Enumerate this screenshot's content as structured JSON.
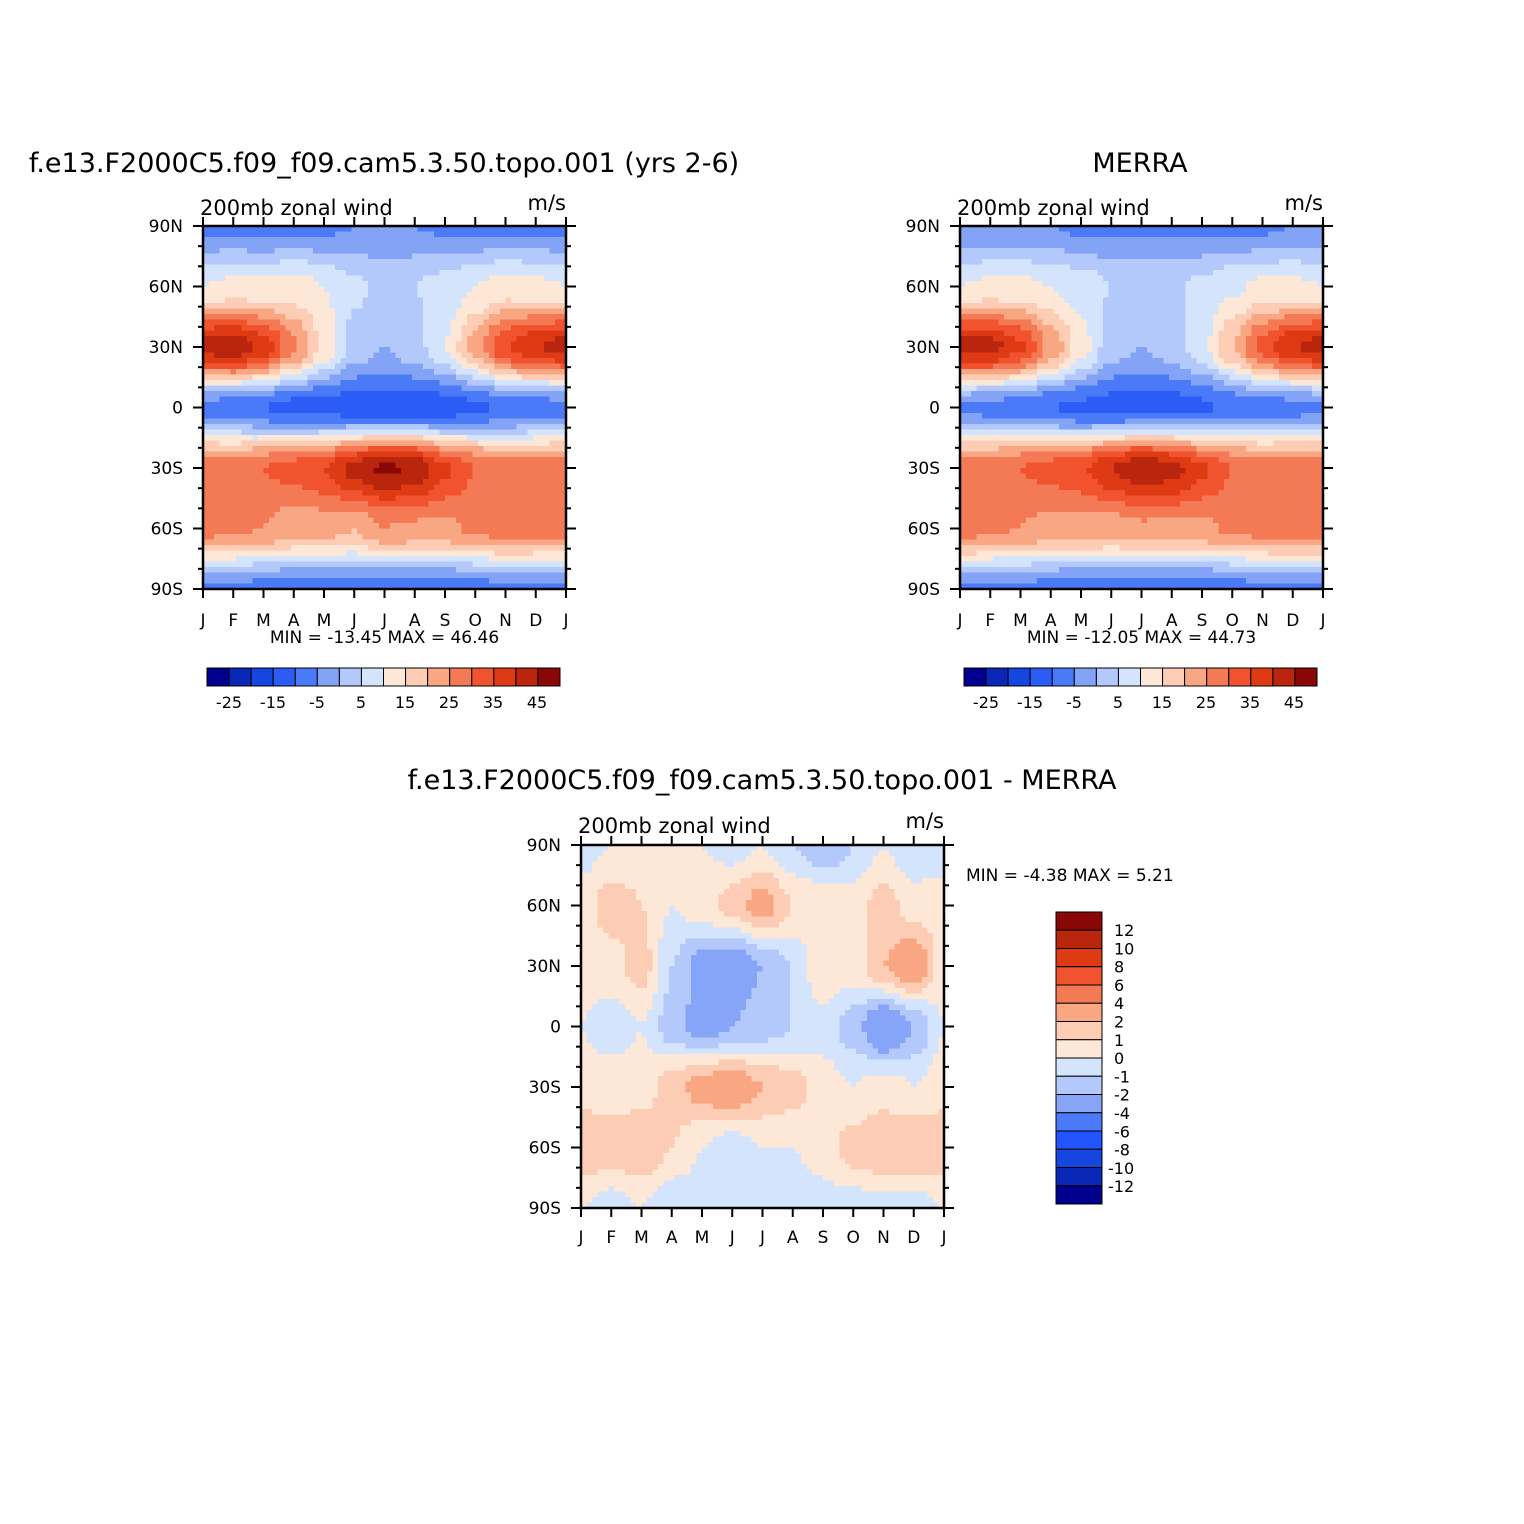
{
  "colors": {
    "full_palette": [
      "#00008f",
      "#0a27b8",
      "#1546e0",
      "#2b5cf6",
      "#4a7af8",
      "#83a3f6",
      "#b4c9fb",
      "#d4e4fc",
      "#fde7d6",
      "#fccdb4",
      "#f9a783",
      "#f47a55",
      "#f1532f",
      "#de3b14",
      "#b9250d",
      "#8a0707"
    ],
    "diff_palette": [
      "#00008f",
      "#0a27b8",
      "#1546e0",
      "#2255ff",
      "#4a7af8",
      "#87a5f8",
      "#b4c9fb",
      "#d4e4fc",
      "#fde7d6",
      "#fccdb4",
      "#f9a783",
      "#f47a55",
      "#f1532f",
      "#de3b14",
      "#b9250d",
      "#8a0707"
    ]
  },
  "ticks": {
    "months": [
      "J",
      "F",
      "M",
      "A",
      "M",
      "J",
      "J",
      "A",
      "S",
      "O",
      "N",
      "D",
      "J"
    ],
    "lats": [
      "90N",
      "60N",
      "30N",
      "0",
      "30S",
      "60S",
      "90S"
    ]
  },
  "panels": {
    "model": {
      "title": "f.e13.F2000C5.f09_f09.cam5.3.50.topo.001 (yrs 2-6)",
      "subtitle_left": "200mb zonal wind",
      "subtitle_right": "m/s",
      "stats": "MIN = -13.45 MAX = 46.46"
    },
    "obs": {
      "title": "MERRA",
      "subtitle_left": "200mb zonal wind",
      "subtitle_right": "m/s",
      "stats": "MIN = -12.05 MAX = 44.73"
    },
    "diff": {
      "title": "f.e13.F2000C5.f09_f09.cam5.3.50.topo.001 - MERRA",
      "subtitle_left": "200mb zonal wind",
      "subtitle_right": "m/s",
      "stats": "MIN = -4.38 MAX = 5.21"
    }
  },
  "colorbars": {
    "full_labels": [
      "-25",
      "-15",
      "-5",
      "5",
      "15",
      "25",
      "35",
      "45"
    ],
    "diff_labels": [
      "12",
      "10",
      "8",
      "6",
      "4",
      "2",
      "1",
      "0",
      "-1",
      "-2",
      "-4",
      "-6",
      "-8",
      "-10",
      "-12"
    ]
  },
  "chart_data": [
    {
      "type": "heatmap",
      "title": "f.e13.F2000C5.f09_f09.cam5.3.50.topo.001 (yrs 2-6)",
      "subtitle": "200mb zonal wind",
      "units": "m/s",
      "x": [
        "J",
        "F",
        "M",
        "A",
        "M",
        "J",
        "J",
        "A",
        "S",
        "O",
        "N",
        "D",
        "J"
      ],
      "y": [
        "90N",
        "60N",
        "30N",
        "0",
        "30S",
        "60S",
        "90S"
      ],
      "values": [
        [
          -6,
          -6,
          -7,
          -6,
          -6,
          -5,
          -5,
          -5,
          -6,
          -6,
          -6,
          -6,
          -6
        ],
        [
          10,
          11,
          11,
          12,
          10,
          6,
          4,
          5,
          7,
          10,
          12,
          11,
          10
        ],
        [
          42,
          44,
          38,
          26,
          14,
          3,
          0,
          3,
          10,
          22,
          35,
          40,
          42
        ],
        [
          -7,
          -8,
          -10,
          -12,
          -12,
          -13,
          -13,
          -13,
          -13,
          -11,
          -9,
          -8,
          -7
        ],
        [
          28,
          28,
          30,
          32,
          35,
          42,
          46,
          44,
          36,
          30,
          28,
          28,
          28
        ],
        [
          27,
          26,
          25,
          22,
          22,
          20,
          25,
          24,
          24,
          26,
          28,
          27,
          27
        ],
        [
          -6,
          -6,
          -7,
          -8,
          -8,
          -8,
          -8,
          -8,
          -8,
          -7,
          -6,
          -6,
          -6
        ]
      ],
      "levels": [
        -30,
        -25,
        -20,
        -15,
        -10,
        -5,
        0,
        5,
        10,
        15,
        20,
        25,
        30,
        35,
        40,
        45
      ],
      "colorbar_labels": [
        "-25",
        "-15",
        "-5",
        "5",
        "15",
        "25",
        "35",
        "45"
      ],
      "min": -13.45,
      "max": 46.46
    },
    {
      "type": "heatmap",
      "title": "MERRA",
      "subtitle": "200mb zonal wind",
      "units": "m/s",
      "x": [
        "J",
        "F",
        "M",
        "A",
        "M",
        "J",
        "J",
        "A",
        "S",
        "O",
        "N",
        "D",
        "J"
      ],
      "y": [
        "90N",
        "60N",
        "30N",
        "0",
        "30S",
        "60S",
        "90S"
      ],
      "values": [
        [
          -5,
          -5,
          -5,
          -5,
          -6,
          -6,
          -6,
          -6,
          -6,
          -6,
          -6,
          -5,
          -5
        ],
        [
          10,
          11,
          11,
          10,
          8,
          5,
          4,
          4,
          6,
          9,
          11,
          11,
          10
        ],
        [
          42,
          42,
          36,
          24,
          12,
          2,
          0,
          2,
          8,
          20,
          32,
          40,
          42
        ],
        [
          -6,
          -7,
          -8,
          -10,
          -11,
          -12,
          -12,
          -12,
          -11,
          -9,
          -8,
          -7,
          -6
        ],
        [
          28,
          28,
          30,
          32,
          34,
          40,
          44,
          42,
          36,
          30,
          28,
          28,
          28
        ],
        [
          28,
          26,
          25,
          23,
          23,
          22,
          24,
          24,
          24,
          26,
          27,
          28,
          28
        ],
        [
          -6,
          -6,
          -6,
          -7,
          -8,
          -8,
          -8,
          -8,
          -8,
          -7,
          -6,
          -6,
          -6
        ]
      ],
      "levels": [
        -30,
        -25,
        -20,
        -15,
        -10,
        -5,
        0,
        5,
        10,
        15,
        20,
        25,
        30,
        35,
        40,
        45
      ],
      "colorbar_labels": [
        "-25",
        "-15",
        "-5",
        "5",
        "15",
        "25",
        "35",
        "45"
      ],
      "min": -12.05,
      "max": 44.73
    },
    {
      "type": "heatmap",
      "title": "f.e13.F2000C5.f09_f09.cam5.3.50.topo.001 - MERRA",
      "subtitle": "200mb zonal wind",
      "units": "m/s",
      "x": [
        "J",
        "F",
        "M",
        "A",
        "M",
        "J",
        "J",
        "A",
        "S",
        "O",
        "N",
        "D",
        "J"
      ],
      "y": [
        "90N",
        "60N",
        "30N",
        "0",
        "30S",
        "60S",
        "90S"
      ],
      "values": [
        [
          -0.5,
          0,
          0.5,
          0.5,
          0,
          -0.5,
          0,
          -1,
          -2,
          -1,
          0,
          -1,
          -0.5
        ],
        [
          0.5,
          1.5,
          1,
          0,
          0.5,
          1.5,
          2.5,
          1,
          1,
          0.5,
          1.5,
          0.5,
          0.5
        ],
        [
          0.5,
          0.5,
          1.5,
          -1,
          -2.5,
          -3,
          -2,
          -1,
          1,
          0.5,
          2,
          3,
          0.5
        ],
        [
          0,
          -0.5,
          0,
          -1.5,
          -2.5,
          -2,
          -1.5,
          -1,
          -0.5,
          -1.5,
          -3.5,
          -2,
          0
        ],
        [
          0.5,
          0.5,
          0.5,
          1.5,
          2.5,
          3,
          2,
          1.5,
          0.5,
          0,
          0.5,
          0,
          0.5
        ],
        [
          2,
          1.5,
          2,
          1,
          0,
          -0.5,
          0,
          0,
          0.5,
          1.5,
          2,
          2,
          2
        ],
        [
          0,
          -0.5,
          0,
          -1,
          -0.5,
          -0.5,
          -1,
          -1,
          -0.5,
          -0.5,
          -0.5,
          -0.5,
          0
        ]
      ],
      "levels": [
        -14,
        -12,
        -10,
        -8,
        -6,
        -4,
        -2,
        -1,
        0,
        1,
        2,
        4,
        6,
        8,
        10,
        12
      ],
      "colorbar_labels": [
        "12",
        "10",
        "8",
        "6",
        "4",
        "2",
        "1",
        "0",
        "-1",
        "-2",
        "-4",
        "-6",
        "-8",
        "-10",
        "-12"
      ],
      "min": -4.38,
      "max": 5.21
    }
  ]
}
